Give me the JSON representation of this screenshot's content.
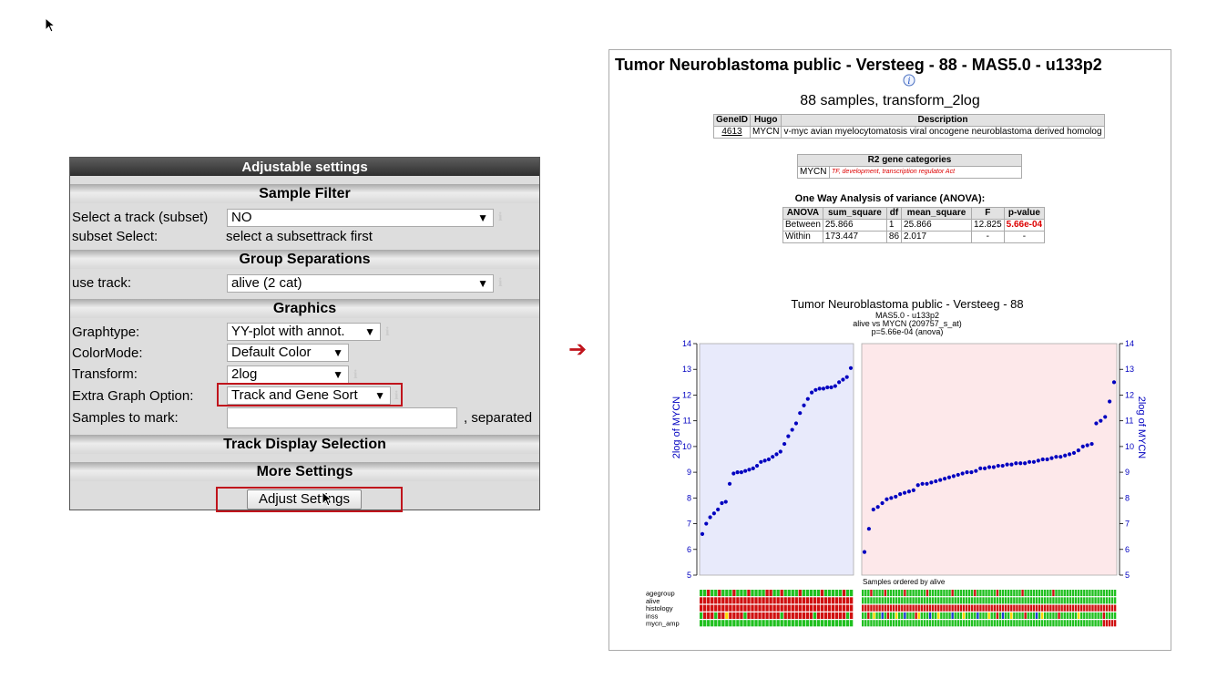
{
  "settings": {
    "title": "Adjustable settings",
    "sections": {
      "sample_filter": "Sample Filter",
      "group_separations": "Group Separations",
      "graphics": "Graphics",
      "track_display": "Track Display Selection",
      "more_settings": "More Settings"
    },
    "track_subset": {
      "label": "Select a track (subset)",
      "value": "NO"
    },
    "subset_select": {
      "label": "subset Select:",
      "value": "select a subsettrack first"
    },
    "use_track": {
      "label": "use track:",
      "value": "alive (2 cat)"
    },
    "graphtype": {
      "label": "Graphtype:",
      "value": "YY-plot with annot."
    },
    "colormode": {
      "label": "ColorMode:",
      "value": "Default Color"
    },
    "transform": {
      "label": "Transform:",
      "value": "2log"
    },
    "extra_graph": {
      "label": "Extra Graph Option:",
      "value": "Track and Gene Sort"
    },
    "samples_to_mark": {
      "label": "Samples to mark:",
      "value": "",
      "suffix": ", separated"
    },
    "info_glyph": "i",
    "dropdown_arrow": "▼",
    "adjust_button": "Adjust Settings"
  },
  "arrow_glyph": "➔",
  "result": {
    "title": "Tumor Neuroblastoma public - Versteeg - 88 - MAS5.0 - u133p2",
    "subtitle": "88 samples, transform_2log",
    "gene_table": {
      "headers": [
        "GeneID",
        "Hugo",
        "Description"
      ],
      "row": [
        "4613",
        "MYCN",
        "v-myc avian myelocytomatosis viral oncogene neuroblastoma derived homolog"
      ]
    },
    "r2_table": {
      "header": "R2 gene categories",
      "gene": "MYCN",
      "categories": "TF, development, transcription regulator Act"
    },
    "anova_title": "One Way Analysis of variance (ANOVA):",
    "anova_table": {
      "headers": [
        "ANOVA",
        "sum_square",
        "df",
        "mean_square",
        "F",
        "p-value"
      ],
      "rows": [
        [
          "Between",
          "25.866",
          "1",
          "25.866",
          "12.825",
          "5.66e-04"
        ],
        [
          "Within",
          "173.447",
          "86",
          "2.017",
          "-",
          "-"
        ]
      ]
    }
  },
  "chart_data": {
    "type": "scatter",
    "title": "Tumor Neuroblastoma public - Versteeg - 88",
    "subtitle_lines": [
      "MAS5.0 - u133p2",
      "alive vs MYCN (209757_s_at)",
      "p=5.66e-04  (anova)"
    ],
    "ylabel": "2log of MYCN",
    "ylim": [
      5,
      14
    ],
    "yticks": [
      5,
      6,
      7,
      8,
      9,
      10,
      11,
      12,
      13,
      14
    ],
    "xlabel_bottom": "Samples ordered by alive",
    "colors": {
      "group1_bg": "#e8eafb",
      "group2_bg": "#fde8ea",
      "point": "#0000c0",
      "axis_text": "#0000c0"
    },
    "series": [
      {
        "values": [
          6.6,
          7.0,
          7.25,
          7.4,
          7.55,
          7.8,
          7.85,
          8.55,
          8.95,
          9.0,
          9.0,
          9.05,
          9.1,
          9.15,
          9.25,
          9.4,
          9.45,
          9.5,
          9.6,
          9.7,
          9.8,
          10.1,
          10.4,
          10.65,
          10.9,
          11.3,
          11.6,
          11.85,
          12.1,
          12.2,
          12.25,
          12.25,
          12.3,
          12.3,
          12.35,
          12.5,
          12.6,
          12.7,
          13.05
        ]
      },
      {
        "values": [
          5.9,
          6.8,
          7.55,
          7.65,
          7.8,
          7.95,
          8.0,
          8.05,
          8.15,
          8.2,
          8.25,
          8.3,
          8.5,
          8.55,
          8.55,
          8.6,
          8.65,
          8.7,
          8.75,
          8.8,
          8.85,
          8.9,
          8.95,
          9.0,
          9.0,
          9.05,
          9.15,
          9.15,
          9.2,
          9.2,
          9.25,
          9.25,
          9.3,
          9.3,
          9.35,
          9.35,
          9.35,
          9.4,
          9.4,
          9.45,
          9.5,
          9.5,
          9.55,
          9.6,
          9.6,
          9.65,
          9.7,
          9.75,
          9.85,
          10.0,
          10.05,
          10.1,
          10.9,
          11.0,
          11.15,
          11.75,
          12.5
        ]
      }
    ],
    "tracks": [
      {
        "name": "agegroup",
        "g1": [
          1,
          1,
          0,
          1,
          1,
          0,
          1,
          1,
          1,
          0,
          1,
          1,
          1,
          0,
          1,
          1,
          1,
          1,
          0,
          0,
          1,
          1,
          0,
          1,
          1,
          1,
          1,
          0,
          1,
          1,
          1,
          1,
          1,
          0,
          1,
          1,
          1,
          1,
          1,
          0,
          1,
          1
        ],
        "g2": [
          1,
          1,
          1,
          0,
          1,
          1,
          1,
          1,
          0,
          1,
          1,
          1,
          1,
          1,
          1,
          0,
          1,
          1,
          1,
          1,
          1,
          1,
          1,
          0,
          1,
          1,
          1,
          1,
          1,
          1,
          1,
          1,
          0,
          1,
          1,
          1,
          1,
          1,
          1,
          1,
          0,
          1,
          1,
          1,
          1,
          1,
          1,
          1,
          0,
          1,
          1,
          1,
          1,
          1,
          1,
          1,
          1,
          0,
          1,
          1,
          1,
          1,
          1,
          1,
          1,
          1,
          1,
          1,
          0,
          1,
          1,
          1,
          1,
          1,
          1,
          1,
          1,
          1,
          1,
          1,
          1,
          1,
          1,
          1,
          1,
          1,
          1,
          1,
          1,
          1,
          1
        ]
      },
      {
        "name": "alive",
        "g1": [
          0,
          0,
          0,
          0,
          0,
          0,
          0,
          0,
          0,
          0,
          0,
          0,
          0,
          0,
          0,
          0,
          0,
          0,
          0,
          0,
          0,
          0,
          0,
          0,
          0,
          0,
          0,
          0,
          0,
          0,
          0,
          0,
          0,
          0,
          0,
          0,
          0,
          0,
          0,
          0,
          0,
          0
        ],
        "g2": [
          1,
          1,
          1,
          1,
          1,
          1,
          1,
          1,
          1,
          1,
          1,
          1,
          1,
          1,
          1,
          1,
          1,
          1,
          1,
          1,
          1,
          1,
          1,
          1,
          1,
          1,
          1,
          1,
          1,
          1,
          1,
          1,
          1,
          1,
          1,
          1,
          1,
          1,
          1,
          1,
          1,
          1,
          1,
          1,
          1,
          1,
          1,
          1,
          1,
          1,
          1,
          1,
          1,
          1,
          1,
          1,
          1,
          1,
          1,
          1,
          1,
          1,
          1,
          1,
          1,
          1,
          1,
          1,
          1,
          1,
          1,
          1,
          1,
          1,
          1,
          1,
          1,
          1,
          1,
          1,
          1,
          1,
          1,
          1,
          1,
          1,
          1,
          1,
          1,
          1,
          1
        ]
      },
      {
        "name": "histology",
        "g1": [
          0,
          0,
          0,
          0,
          0,
          0,
          0,
          0,
          0,
          0,
          0,
          0,
          0,
          0,
          0,
          0,
          0,
          0,
          0,
          0,
          0,
          0,
          0,
          0,
          0,
          0,
          0,
          0,
          0,
          0,
          0,
          0,
          0,
          0,
          0,
          0,
          0,
          0,
          0,
          0,
          0,
          0
        ],
        "g2": [
          0,
          0,
          0,
          0,
          0,
          0,
          0,
          0,
          0,
          0,
          0,
          0,
          0,
          0,
          0,
          0,
          0,
          0,
          0,
          0,
          0,
          0,
          0,
          0,
          0,
          0,
          0,
          0,
          0,
          0,
          0,
          0,
          0,
          0,
          0,
          0,
          0,
          0,
          0,
          0,
          0,
          0,
          0,
          0,
          0,
          0,
          0,
          0,
          0,
          0,
          0,
          0,
          0,
          0,
          0,
          0,
          0,
          0,
          0,
          0,
          0,
          0,
          0,
          0,
          0,
          0,
          0,
          0,
          0,
          0,
          0,
          0,
          0,
          0,
          0,
          0,
          0,
          0,
          0,
          0,
          0,
          0,
          0,
          0,
          0,
          0,
          0,
          0,
          0,
          0,
          0
        ]
      },
      {
        "name": "inss",
        "g1": [
          1,
          0,
          0,
          0,
          1,
          0,
          0,
          2,
          0,
          0,
          0,
          0,
          1,
          0,
          0,
          0,
          0,
          0,
          0,
          0,
          0,
          0,
          1,
          0,
          0,
          0,
          0,
          0,
          0,
          0,
          0,
          1,
          0,
          0,
          0,
          0,
          0,
          0,
          0,
          0,
          1,
          0
        ],
        "g2": [
          1,
          1,
          0,
          1,
          2,
          1,
          1,
          3,
          1,
          0,
          1,
          1,
          2,
          1,
          1,
          3,
          1,
          1,
          1,
          0,
          2,
          1,
          1,
          1,
          3,
          1,
          1,
          2,
          1,
          1,
          1,
          1,
          3,
          1,
          1,
          1,
          2,
          1,
          1,
          1,
          1,
          3,
          1,
          1,
          1,
          2,
          1,
          1,
          0,
          1,
          3,
          1,
          1,
          2,
          1,
          1,
          1,
          1,
          0,
          1,
          1,
          1,
          3,
          1,
          2,
          1,
          1,
          1,
          1,
          1,
          0,
          1,
          1,
          1,
          1,
          1,
          1,
          2,
          1,
          1,
          1,
          1,
          1,
          1,
          1,
          1,
          0,
          1,
          1,
          1,
          1
        ]
      },
      {
        "name": "mycn_amp",
        "g1": [
          1,
          1,
          1,
          1,
          1,
          1,
          1,
          1,
          1,
          1,
          1,
          1,
          1,
          1,
          1,
          1,
          1,
          1,
          1,
          1,
          1,
          1,
          1,
          1,
          1,
          1,
          1,
          1,
          1,
          1,
          1,
          1,
          1,
          1,
          1,
          1,
          1,
          1,
          1,
          1,
          1,
          1
        ],
        "g2": [
          1,
          1,
          1,
          1,
          1,
          1,
          1,
          1,
          1,
          1,
          1,
          1,
          1,
          1,
          1,
          1,
          1,
          1,
          1,
          1,
          1,
          1,
          1,
          1,
          1,
          1,
          1,
          1,
          1,
          1,
          1,
          1,
          1,
          1,
          1,
          1,
          1,
          1,
          1,
          1,
          1,
          1,
          1,
          1,
          1,
          1,
          1,
          1,
          1,
          1,
          1,
          1,
          1,
          1,
          1,
          1,
          1,
          1,
          1,
          1,
          1,
          1,
          1,
          1,
          1,
          1,
          1,
          1,
          1,
          1,
          1,
          1,
          1,
          1,
          1,
          1,
          1,
          1,
          1,
          1,
          1,
          1,
          1,
          1,
          1,
          1,
          0,
          0,
          0,
          0,
          0
        ]
      }
    ],
    "track_colors": [
      "#d01010",
      "#20c020",
      "#ffd700",
      "#1a3fd0"
    ]
  }
}
